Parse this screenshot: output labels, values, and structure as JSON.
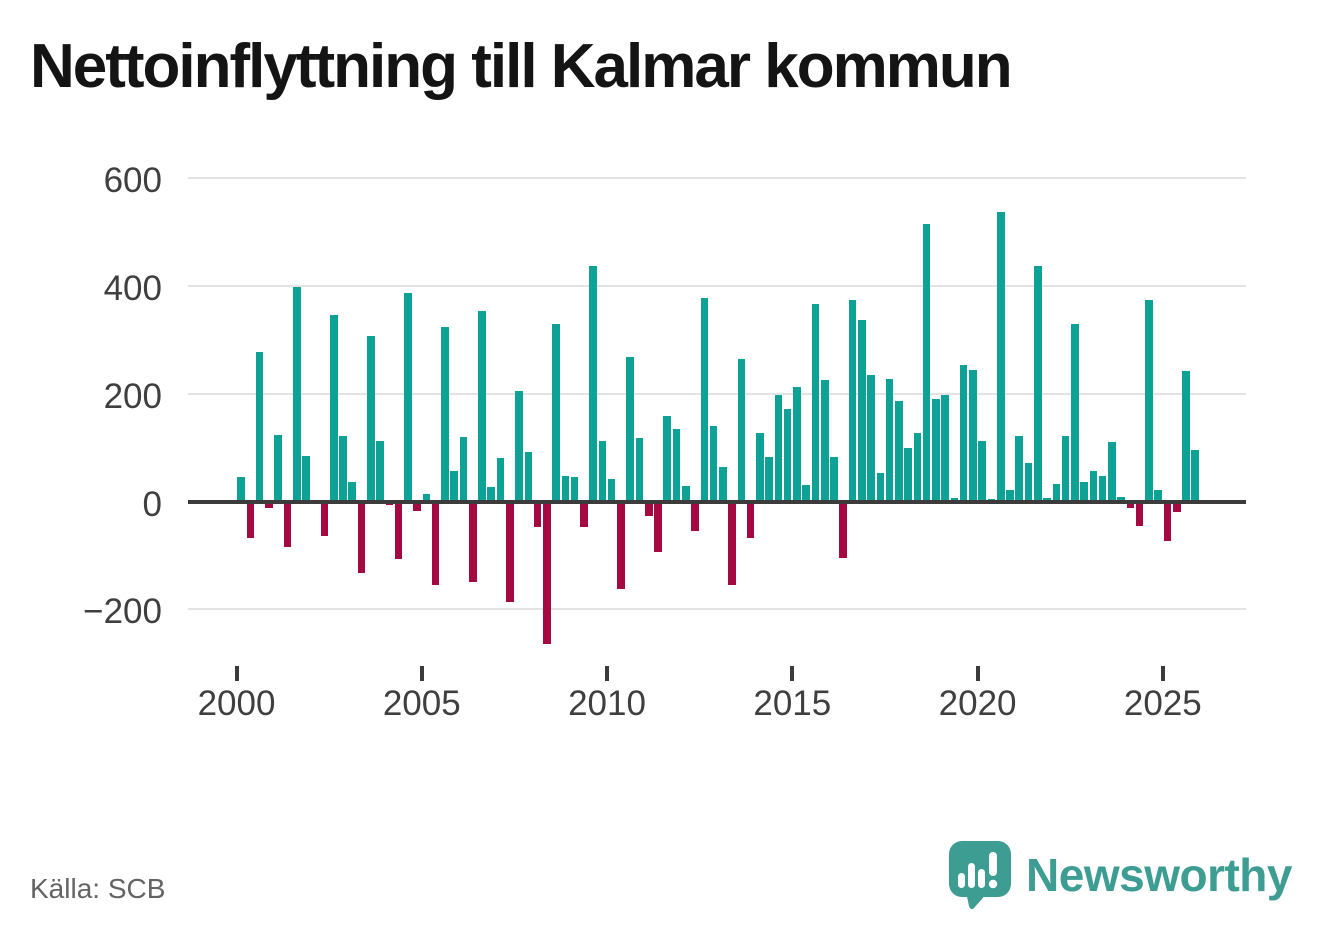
{
  "title": "Nettoinflyttning till Kalmar kommun",
  "source": "Källa: SCB",
  "brand": {
    "name": "Newsworthy",
    "icon": "speech-bubble-bar-chart-icon",
    "color": "#3d9d92"
  },
  "chart_data": {
    "type": "bar",
    "title": "Nettoinflyttning till Kalmar kommun",
    "period_unit": "quarter",
    "start": "2000-Q1",
    "end": "2025-Q4",
    "grid": true,
    "legend_position": "none",
    "y_ticks": [
      600,
      400,
      200,
      0,
      -200
    ],
    "ylim": [
      -290,
      620
    ],
    "x_tick_years": [
      2000,
      2005,
      2010,
      2015,
      2020,
      2025
    ],
    "colors": {
      "positive": "#0da295",
      "negative": "#a40942"
    },
    "series_name": "Nettoinflyttning",
    "years": [
      {
        "year": 2000,
        "q": [
          45,
          -67,
          277,
          -12
        ]
      },
      {
        "year": 2001,
        "q": [
          124,
          -84,
          398,
          84
        ]
      },
      {
        "year": 2002,
        "q": [
          0,
          -64,
          347,
          121
        ]
      },
      {
        "year": 2003,
        "q": [
          36,
          -133,
          307,
          112
        ]
      },
      {
        "year": 2004,
        "q": [
          -6,
          -107,
          388,
          -18
        ]
      },
      {
        "year": 2005,
        "q": [
          13,
          -155,
          324,
          56
        ]
      },
      {
        "year": 2006,
        "q": [
          120,
          -150,
          353,
          27
        ]
      },
      {
        "year": 2007,
        "q": [
          80,
          -186,
          205,
          92
        ]
      },
      {
        "year": 2008,
        "q": [
          -47,
          -265,
          330,
          47
        ]
      },
      {
        "year": 2009,
        "q": [
          45,
          -48,
          437,
          113
        ]
      },
      {
        "year": 2010,
        "q": [
          42,
          -162,
          268,
          118
        ]
      },
      {
        "year": 2011,
        "q": [
          -27,
          -93,
          158,
          135
        ]
      },
      {
        "year": 2012,
        "q": [
          28,
          -55,
          378,
          140
        ]
      },
      {
        "year": 2013,
        "q": [
          64,
          -155,
          264,
          -68
        ]
      },
      {
        "year": 2014,
        "q": [
          127,
          82,
          198,
          172
        ]
      },
      {
        "year": 2015,
        "q": [
          212,
          31,
          366,
          226
        ]
      },
      {
        "year": 2016,
        "q": [
          82,
          -105,
          374,
          337
        ]
      },
      {
        "year": 2017,
        "q": [
          234,
          52,
          228,
          186
        ]
      },
      {
        "year": 2018,
        "q": [
          100,
          128,
          515,
          190
        ]
      },
      {
        "year": 2019,
        "q": [
          197,
          6,
          254,
          244
        ]
      },
      {
        "year": 2020,
        "q": [
          113,
          5,
          538,
          21
        ]
      },
      {
        "year": 2021,
        "q": [
          122,
          72,
          437,
          6
        ]
      },
      {
        "year": 2022,
        "q": [
          33,
          122,
          330,
          37
        ]
      },
      {
        "year": 2023,
        "q": [
          57,
          48,
          111,
          8
        ]
      },
      {
        "year": 2024,
        "q": [
          -12,
          -45,
          375,
          21
        ]
      },
      {
        "year": 2025,
        "q": [
          -74,
          -20,
          243,
          95
        ]
      }
    ]
  }
}
